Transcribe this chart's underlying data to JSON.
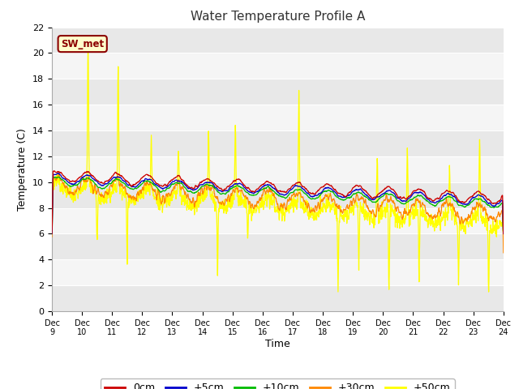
{
  "title": "Water Temperature Profile A",
  "xlabel": "Time",
  "ylabel": "Temperature (C)",
  "ylim": [
    0,
    22
  ],
  "yticks": [
    0,
    2,
    4,
    6,
    8,
    10,
    12,
    14,
    16,
    18,
    20,
    22
  ],
  "annotation_text": "SW_met",
  "annotation_bg": "#ffffcc",
  "annotation_border": "#8B0000",
  "fig_bg": "#ffffff",
  "plot_bg_light": "#f0f0f0",
  "plot_bg_dark": "#e0e0e0",
  "legend_labels": [
    "0cm",
    "+5cm",
    "+10cm",
    "+30cm",
    "+50cm"
  ],
  "legend_colors": [
    "#cc0000",
    "#0000cc",
    "#00bb00",
    "#ff8800",
    "#ffff00"
  ],
  "line_colors": {
    "0cm": "#cc0000",
    "+5cm": "#0000cc",
    "+10cm": "#00bb00",
    "+30cm": "#ff8800",
    "+50cm": "#ffff00"
  },
  "xtick_labels": [
    "Dec 9",
    "Dec 10",
    "Dec 11",
    "Dec 12",
    "Dec 13",
    "Dec 14",
    "Dec 15",
    "Dec 16",
    "Dec 17",
    "Dec 18",
    "Dec 19",
    "Dec 20",
    "Dec 21",
    "Dec 22",
    "Dec 23",
    "Dec 24"
  ],
  "seed": 42
}
